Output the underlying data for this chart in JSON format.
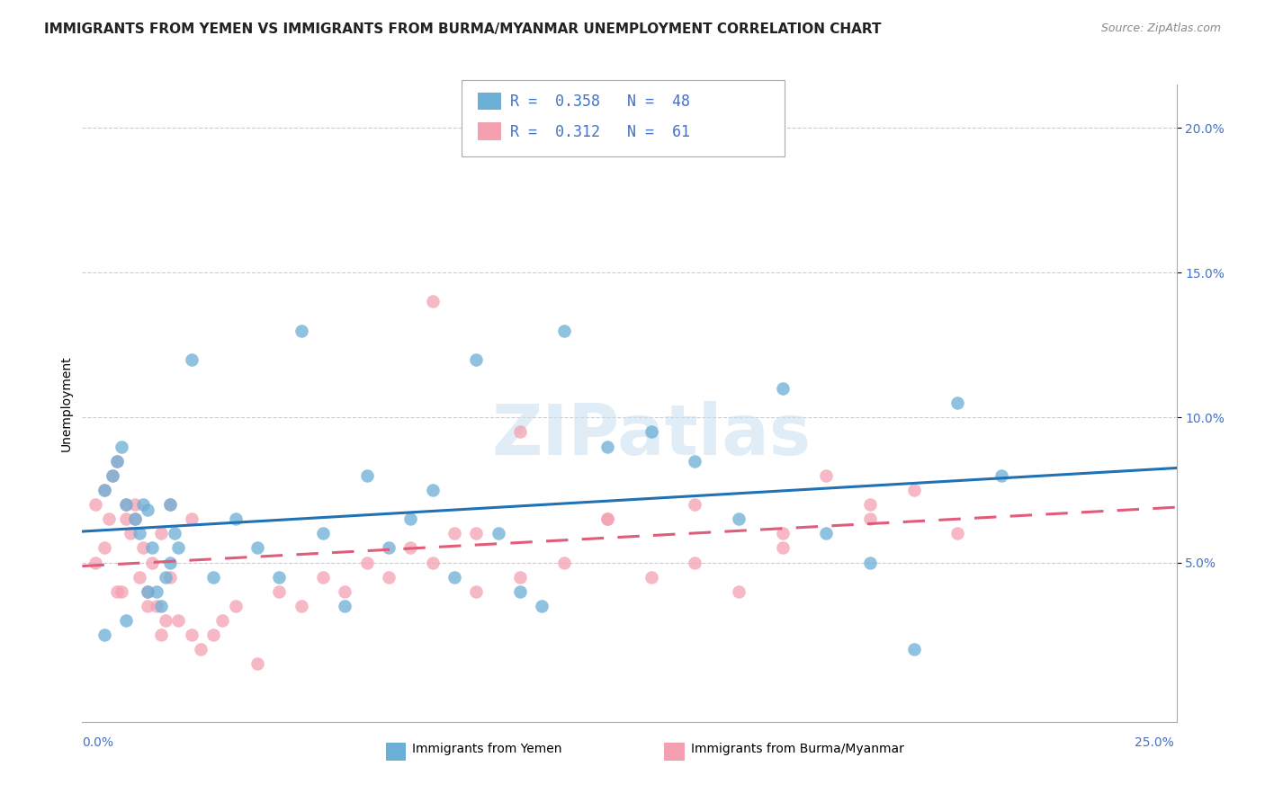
{
  "title": "IMMIGRANTS FROM YEMEN VS IMMIGRANTS FROM BURMA/MYANMAR UNEMPLOYMENT CORRELATION CHART",
  "source": "Source: ZipAtlas.com",
  "ylabel": "Unemployment",
  "r1": 0.358,
  "n1": 48,
  "r2": 0.312,
  "n2": 61,
  "xlim": [
    0.0,
    0.25
  ],
  "ylim": [
    -0.005,
    0.215
  ],
  "yticks": [
    0.05,
    0.1,
    0.15,
    0.2
  ],
  "ytick_labels": [
    "5.0%",
    "10.0%",
    "15.0%",
    "20.0%"
  ],
  "color_yemen": "#6baed6",
  "color_burma": "#f4a0b0",
  "line_color_yemen": "#2171b5",
  "line_color_burma": "#e05c7a",
  "background_color": "#ffffff",
  "watermark": "ZIPatlas",
  "legend1_label": "Immigrants from Yemen",
  "legend2_label": "Immigrants from Burma/Myanmar",
  "yemen_x": [
    0.005,
    0.007,
    0.008,
    0.009,
    0.01,
    0.012,
    0.013,
    0.014,
    0.015,
    0.016,
    0.017,
    0.018,
    0.019,
    0.02,
    0.021,
    0.022,
    0.025,
    0.03,
    0.035,
    0.04,
    0.045,
    0.05,
    0.055,
    0.06,
    0.065,
    0.07,
    0.075,
    0.08,
    0.085,
    0.09,
    0.095,
    0.1,
    0.105,
    0.11,
    0.12,
    0.13,
    0.14,
    0.15,
    0.16,
    0.17,
    0.18,
    0.19,
    0.2,
    0.21,
    0.005,
    0.01,
    0.015,
    0.02
  ],
  "yemen_y": [
    0.075,
    0.08,
    0.085,
    0.09,
    0.07,
    0.065,
    0.06,
    0.07,
    0.068,
    0.055,
    0.04,
    0.035,
    0.045,
    0.05,
    0.06,
    0.055,
    0.12,
    0.045,
    0.065,
    0.055,
    0.045,
    0.13,
    0.06,
    0.035,
    0.08,
    0.055,
    0.065,
    0.075,
    0.045,
    0.12,
    0.06,
    0.04,
    0.035,
    0.13,
    0.09,
    0.095,
    0.085,
    0.065,
    0.11,
    0.06,
    0.05,
    0.02,
    0.105,
    0.08,
    0.025,
    0.03,
    0.04,
    0.07
  ],
  "burma_x": [
    0.003,
    0.005,
    0.006,
    0.007,
    0.008,
    0.009,
    0.01,
    0.011,
    0.012,
    0.013,
    0.014,
    0.015,
    0.016,
    0.017,
    0.018,
    0.019,
    0.02,
    0.022,
    0.025,
    0.027,
    0.03,
    0.032,
    0.035,
    0.04,
    0.045,
    0.05,
    0.055,
    0.06,
    0.065,
    0.07,
    0.075,
    0.08,
    0.085,
    0.09,
    0.1,
    0.11,
    0.12,
    0.13,
    0.14,
    0.15,
    0.16,
    0.17,
    0.18,
    0.19,
    0.2,
    0.003,
    0.005,
    0.008,
    0.01,
    0.012,
    0.015,
    0.018,
    0.02,
    0.025,
    0.1,
    0.12,
    0.14,
    0.16,
    0.09,
    0.08,
    0.18
  ],
  "burma_y": [
    0.07,
    0.075,
    0.065,
    0.08,
    0.085,
    0.04,
    0.07,
    0.06,
    0.065,
    0.045,
    0.055,
    0.04,
    0.05,
    0.035,
    0.025,
    0.03,
    0.045,
    0.03,
    0.025,
    0.02,
    0.025,
    0.03,
    0.035,
    0.015,
    0.04,
    0.035,
    0.045,
    0.04,
    0.05,
    0.045,
    0.055,
    0.05,
    0.06,
    0.04,
    0.045,
    0.05,
    0.065,
    0.045,
    0.05,
    0.04,
    0.06,
    0.08,
    0.07,
    0.075,
    0.06,
    0.05,
    0.055,
    0.04,
    0.065,
    0.07,
    0.035,
    0.06,
    0.07,
    0.065,
    0.095,
    0.065,
    0.07,
    0.055,
    0.06,
    0.14,
    0.065
  ],
  "title_fontsize": 11,
  "axis_label_fontsize": 10,
  "tick_fontsize": 10,
  "dot_size": 110
}
